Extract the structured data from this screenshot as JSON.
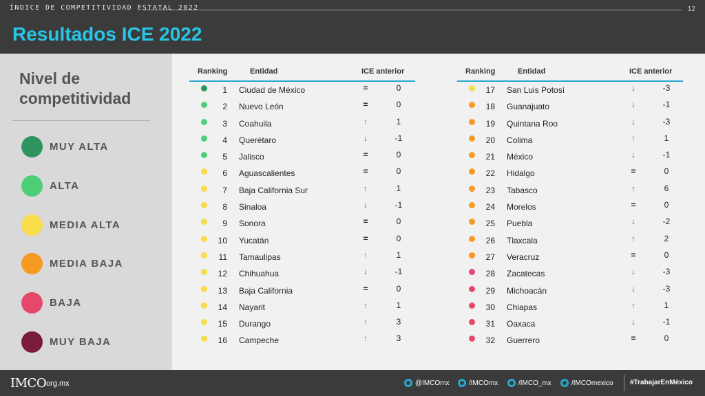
{
  "header": {
    "kicker": "ÍNDICE DE COMPETITIVIDAD ESTATAL 2022",
    "page_number": "12",
    "title": "Resultados ICE 2022"
  },
  "legend": {
    "title": "Nivel de competitividad",
    "items": [
      {
        "label": "MUY ALTA",
        "color": "#2e9460"
      },
      {
        "label": "ALTA",
        "color": "#4dcf78"
      },
      {
        "label": "MEDIA ALTA",
        "color": "#f7dc4c"
      },
      {
        "label": "MEDIA BAJA",
        "color": "#f79a24"
      },
      {
        "label": "BAJA",
        "color": "#e4496c"
      },
      {
        "label": "MUY BAJA",
        "color": "#7a1b3a"
      }
    ]
  },
  "table_headers": {
    "ranking": "Ranking",
    "entidad": "Entidad",
    "ice_anterior": "ICE anterior"
  },
  "arrows": {
    "up": "↑",
    "down": "↓",
    "equal": "="
  },
  "arrow_colors": {
    "up": "#2e9e48",
    "down": "#c8282d",
    "equal": "#222222"
  },
  "left_table": [
    {
      "rank": "1",
      "entidad": "Ciudad de México",
      "level": 0,
      "trend": "equal",
      "change": "0"
    },
    {
      "rank": "2",
      "entidad": "Nuevo León",
      "level": 1,
      "trend": "equal",
      "change": "0"
    },
    {
      "rank": "3",
      "entidad": "Coahuila",
      "level": 1,
      "trend": "up",
      "change": "1"
    },
    {
      "rank": "4",
      "entidad": "Querétaro",
      "level": 1,
      "trend": "down",
      "change": "-1"
    },
    {
      "rank": "5",
      "entidad": "Jalisco",
      "level": 1,
      "trend": "equal",
      "change": "0"
    },
    {
      "rank": "6",
      "entidad": "Aguascalientes",
      "level": 2,
      "trend": "equal",
      "change": "0"
    },
    {
      "rank": "7",
      "entidad": "Baja California Sur",
      "level": 2,
      "trend": "up",
      "change": "1"
    },
    {
      "rank": "8",
      "entidad": "Sinaloa",
      "level": 2,
      "trend": "down",
      "change": "-1"
    },
    {
      "rank": "9",
      "entidad": "Sonora",
      "level": 2,
      "trend": "equal",
      "change": "0"
    },
    {
      "rank": "10",
      "entidad": "Yucatán",
      "level": 2,
      "trend": "equal",
      "change": "0"
    },
    {
      "rank": "11",
      "entidad": "Tamaulipas",
      "level": 2,
      "trend": "up",
      "change": "1"
    },
    {
      "rank": "12",
      "entidad": "Chihuahua",
      "level": 2,
      "trend": "down",
      "change": "-1"
    },
    {
      "rank": "13",
      "entidad": "Baja California",
      "level": 2,
      "trend": "equal",
      "change": "0"
    },
    {
      "rank": "14",
      "entidad": "Nayarit",
      "level": 2,
      "trend": "up",
      "change": "1"
    },
    {
      "rank": "15",
      "entidad": "Durango",
      "level": 2,
      "trend": "up",
      "change": "3"
    },
    {
      "rank": "16",
      "entidad": "Campeche",
      "level": 2,
      "trend": "up",
      "change": "3"
    }
  ],
  "right_table": [
    {
      "rank": "17",
      "entidad": "San Luis Potosí",
      "level": 2,
      "trend": "down",
      "change": "-3"
    },
    {
      "rank": "18",
      "entidad": "Guanajuato",
      "level": 3,
      "trend": "down",
      "change": "-1"
    },
    {
      "rank": "19",
      "entidad": "Quintana Roo",
      "level": 3,
      "trend": "down",
      "change": "-3"
    },
    {
      "rank": "20",
      "entidad": "Colima",
      "level": 3,
      "trend": "up",
      "change": "1"
    },
    {
      "rank": "21",
      "entidad": "México",
      "level": 3,
      "trend": "down",
      "change": "-1"
    },
    {
      "rank": "22",
      "entidad": "Hidalgo",
      "level": 3,
      "trend": "equal",
      "change": "0"
    },
    {
      "rank": "23",
      "entidad": "Tabasco",
      "level": 3,
      "trend": "up",
      "change": "6"
    },
    {
      "rank": "24",
      "entidad": "Morelos",
      "level": 3,
      "trend": "equal",
      "change": "0"
    },
    {
      "rank": "25",
      "entidad": "Puebla",
      "level": 3,
      "trend": "down",
      "change": "-2"
    },
    {
      "rank": "26",
      "entidad": "Tlaxcala",
      "level": 3,
      "trend": "up",
      "change": "2"
    },
    {
      "rank": "27",
      "entidad": "Veracruz",
      "level": 3,
      "trend": "equal",
      "change": "0"
    },
    {
      "rank": "28",
      "entidad": "Zacatecas",
      "level": 4,
      "trend": "down",
      "change": "-3"
    },
    {
      "rank": "29",
      "entidad": "Michoacán",
      "level": 4,
      "trend": "down",
      "change": "-3"
    },
    {
      "rank": "30",
      "entidad": "Chiapas",
      "level": 4,
      "trend": "up",
      "change": "1"
    },
    {
      "rank": "31",
      "entidad": "Oaxaca",
      "level": 4,
      "trend": "down",
      "change": "-1"
    },
    {
      "rank": "32",
      "entidad": "Guerrero",
      "level": 4,
      "trend": "equal",
      "change": "0"
    }
  ],
  "footer": {
    "logo": "IMCO",
    "domain": ".org.mx",
    "social": [
      {
        "icon": "twitter-icon",
        "label": "@IMCOmx"
      },
      {
        "icon": "facebook-icon",
        "label": "/IMCOmx"
      },
      {
        "icon": "instagram-icon",
        "label": "/IMCO_mx"
      },
      {
        "icon": "youtube-icon",
        "label": "/IMCOmexico"
      }
    ],
    "hashtag": "#TrabajarEnMéxico"
  }
}
